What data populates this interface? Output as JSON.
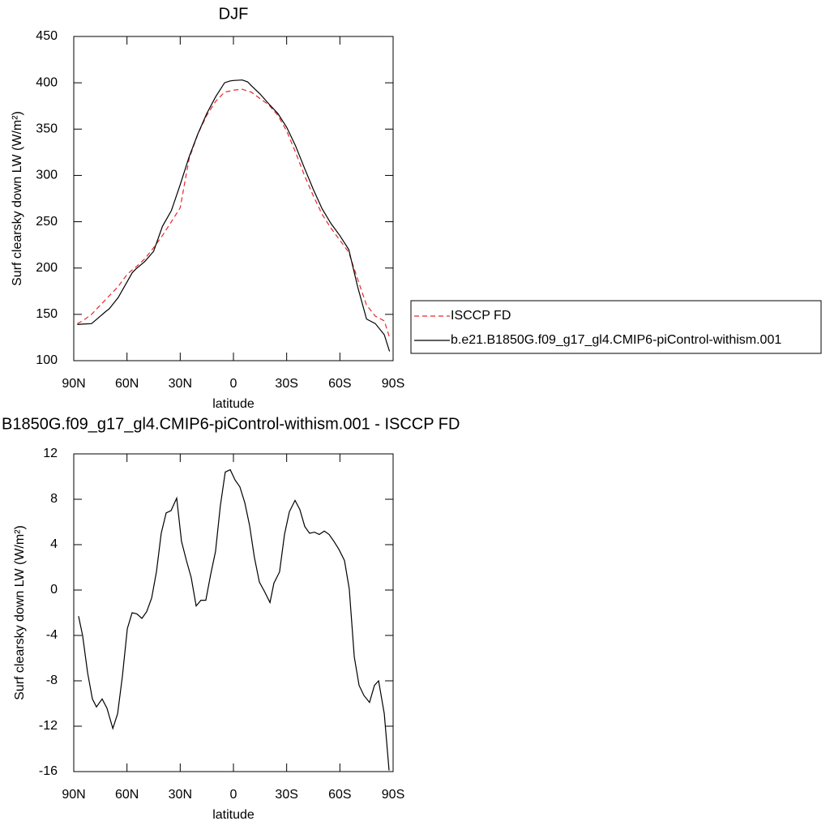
{
  "chart_data": [
    {
      "type": "line",
      "title": "DJF",
      "xlabel": "latitude",
      "ylabel": "Surf clearsky down LW (W/m²)",
      "xlim": [
        90,
        -90
      ],
      "ylim": [
        100,
        450
      ],
      "xticks": [
        {
          "value": 90,
          "label": "90N"
        },
        {
          "value": 60,
          "label": "60N"
        },
        {
          "value": 30,
          "label": "30N"
        },
        0,
        {
          "value": -30,
          "label": "30S"
        },
        {
          "value": -60,
          "label": "60S"
        },
        {
          "value": -90,
          "label": "90S"
        }
      ],
      "yticks": [
        100,
        150,
        200,
        250,
        300,
        350,
        400,
        450
      ],
      "legend": "outside-right",
      "x": [
        88,
        85,
        80,
        75,
        72,
        70,
        65,
        60,
        57,
        55,
        50,
        45,
        40,
        35,
        30,
        25,
        20,
        15,
        10,
        5,
        2,
        0,
        -5,
        -8,
        -10,
        -15,
        -20,
        -25,
        -30,
        -35,
        -40,
        -45,
        -50,
        -55,
        -60,
        -65,
        -70,
        -75,
        -80,
        -85,
        -88
      ],
      "series": [
        {
          "name": "ISCCP FD",
          "color": "#e8262b",
          "linestyle": "dashed",
          "values": [
            140,
            143,
            150,
            160,
            166,
            170,
            180,
            193,
            198,
            201,
            210,
            222,
            235,
            250,
            265,
            318,
            345,
            365,
            380,
            390,
            391,
            392,
            393,
            391,
            390,
            383,
            376,
            365,
            348,
            325,
            300,
            278,
            258,
            243,
            230,
            217,
            188,
            160,
            148,
            143,
            125
          ]
        },
        {
          "name": "b.e21.B1850G.f09_g17_gl4.CMIP6-piControl-withism.001",
          "color": "#000000",
          "linestyle": "solid",
          "values": [
            139,
            139.5,
            140,
            148,
            153,
            156,
            168,
            185,
            195,
            199,
            207,
            218,
            245,
            262,
            290,
            320,
            345,
            367,
            385,
            400,
            402,
            402.5,
            403,
            401,
            397,
            388,
            377,
            367,
            352,
            332,
            308,
            285,
            264,
            248,
            235,
            220,
            180,
            145,
            140,
            128,
            110
          ]
        }
      ]
    },
    {
      "type": "line",
      "title": "B1850G.f09_g17_gl4.CMIP6-piControl-withism.001 - ISCCP FD",
      "xlabel": "latitude",
      "ylabel": "Surf clearsky down LW (W/m²)",
      "xlim": [
        90,
        -90
      ],
      "ylim": [
        -16,
        12
      ],
      "xticks": [
        {
          "value": 90,
          "label": "90N"
        },
        {
          "value": 60,
          "label": "60N"
        },
        {
          "value": 30,
          "label": "30N"
        },
        0,
        {
          "value": -30,
          "label": "30S"
        },
        {
          "value": -60,
          "label": "60S"
        },
        {
          "value": -90,
          "label": "90S"
        }
      ],
      "yticks": [
        -16,
        -12,
        -8,
        -4,
        0,
        4,
        8,
        12
      ],
      "x": [
        87.3,
        85,
        82.2,
        79.5,
        77.2,
        74,
        71.3,
        68,
        65.3,
        62.6,
        59.8,
        57.1,
        54.4,
        51.6,
        48.9,
        46.1,
        43.4,
        40.7,
        37.9,
        35.2,
        32,
        29.3,
        26.5,
        23.8,
        21,
        18.3,
        15.6,
        12.8,
        10.1,
        7.4,
        4.6,
        1.8,
        -0.9,
        -3.6,
        -6.4,
        -9.1,
        -11.8,
        -14.6,
        -17.4,
        -20.6,
        -22.8,
        -26,
        -28.8,
        -31.5,
        -34.7,
        -37.4,
        -40.2,
        -42.9,
        -45.7,
        -48.4,
        -51.2,
        -53.9,
        -56.6,
        -59.4,
        -62.6,
        -65.3,
        -68.1,
        -70.8,
        -73.6,
        -76.7,
        -79.5,
        -81.8,
        -85,
        -87.7
      ],
      "series": [
        {
          "color": "#000000",
          "linestyle": "solid",
          "values": [
            -2.3,
            -4,
            -7.3,
            -9.6,
            -10.3,
            -9.6,
            -10.4,
            -12.2,
            -10.9,
            -7.6,
            -3.4,
            -2,
            -2.1,
            -2.5,
            -1.9,
            -0.7,
            1.6,
            5,
            6.8,
            7,
            8.1,
            4.3,
            2.6,
            1.1,
            -1.4,
            -0.9,
            -0.9,
            1.4,
            3.4,
            7.4,
            10.4,
            10.6,
            9.7,
            9.1,
            7.7,
            5.7,
            2.9,
            0.7,
            -0.1,
            -1.1,
            0.6,
            1.6,
            4.9,
            6.9,
            7.9,
            7.1,
            5.6,
            5,
            5.1,
            4.9,
            5.2,
            4.9,
            4.3,
            3.6,
            2.6,
            0.1,
            -5.9,
            -8.4,
            -9.3,
            -9.9,
            -8.4,
            -8,
            -10.9,
            -15.9
          ]
        }
      ]
    }
  ]
}
